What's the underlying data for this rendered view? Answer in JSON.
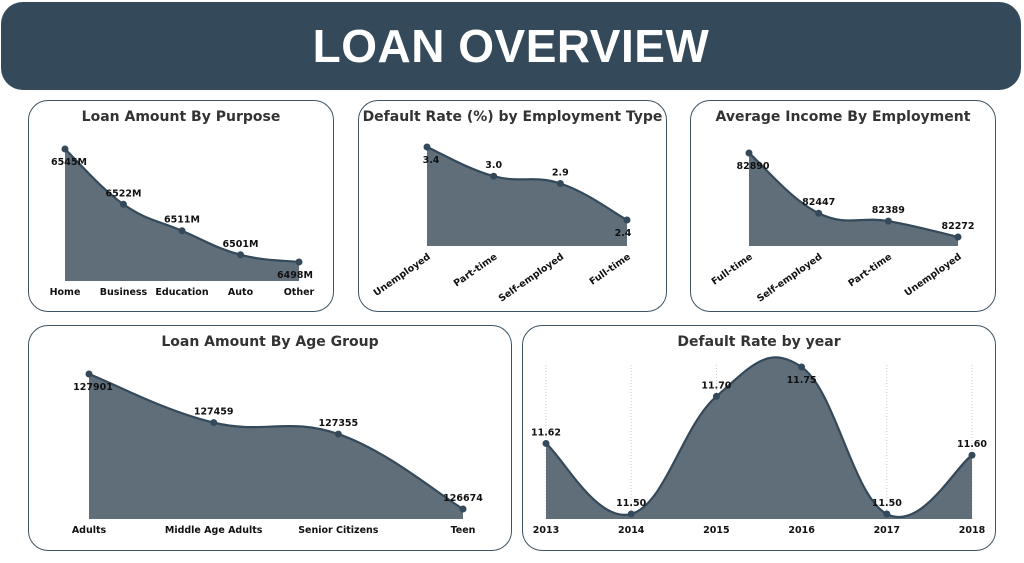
{
  "header": {
    "title": "LOAN OVERVIEW"
  },
  "colors": {
    "header_bg": "#344a5a",
    "area_fill": "#5f6e79",
    "line": "#34495a",
    "panel_border": "#3e5363"
  },
  "chart_data": [
    {
      "type": "area",
      "title": "Loan Amount By Purpose",
      "categories": [
        "Home",
        "Business",
        "Education",
        "Auto",
        "Other"
      ],
      "values": [
        6545,
        6522,
        6511,
        6501,
        6498
      ],
      "labels": [
        "6545M",
        "6522M",
        "6511M",
        "6501M",
        "6498M"
      ],
      "smooth": true,
      "grid": false
    },
    {
      "type": "area",
      "title": "Default Rate (%) by Employment Type",
      "categories": [
        "Unemployed",
        "Part-time",
        "Self-employed",
        "Full-time"
      ],
      "values": [
        3.4,
        3.0,
        2.9,
        2.4
      ],
      "labels": [
        "3.4",
        "3.0",
        "2.9",
        "2.4"
      ],
      "smooth": true,
      "grid": false
    },
    {
      "type": "area",
      "title": "Average Income By Employment",
      "categories": [
        "Full-time",
        "Self-employed",
        "Part-time",
        "Unemployed"
      ],
      "values": [
        82890,
        82447,
        82389,
        82272
      ],
      "labels": [
        "82890",
        "82447",
        "82389",
        "82272"
      ],
      "smooth": true,
      "grid": false
    },
    {
      "type": "area",
      "title": "Loan Amount By Age Group",
      "categories": [
        "Adults",
        "Middle Age Adults",
        "Senior Citizens",
        "Teen"
      ],
      "values": [
        127901,
        127459,
        127355,
        126674
      ],
      "labels": [
        "127901",
        "127459",
        "127355",
        "126674"
      ],
      "smooth": true,
      "grid": false
    },
    {
      "type": "area",
      "title": "Default Rate by year",
      "categories": [
        "2013",
        "2014",
        "2015",
        "2016",
        "2017",
        "2018"
      ],
      "values": [
        11.62,
        11.5,
        11.7,
        11.75,
        11.5,
        11.6
      ],
      "labels": [
        "11.62",
        "11.50",
        "11.70",
        "11.75",
        "11.50",
        "11.60"
      ],
      "smooth": true,
      "grid": true
    }
  ]
}
